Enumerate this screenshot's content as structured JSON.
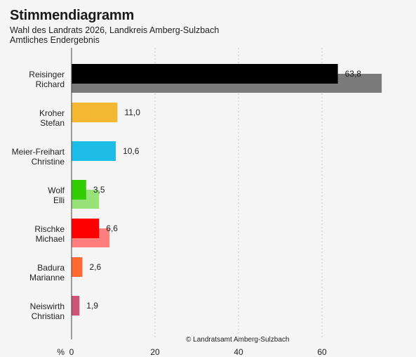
{
  "header": {
    "title": "Stimmendiagramm",
    "subtitle_line1": "Wahl des Landrats 2026, Landkreis Amberg-Sulzbach",
    "subtitle_line2": "Amtliches Endergebnis"
  },
  "source": "© Landratsamt Amberg-Sulzbach",
  "chart_data": {
    "type": "bar",
    "orientation": "horizontal",
    "title": "Stimmendiagramm",
    "subtitle": "Wahl des Landrats 2026, Landkreis Amberg-Sulzbach — Amtliches Endergebnis",
    "x_unit_label": "%",
    "xlim": [
      0,
      76
    ],
    "xticks": [
      0,
      20,
      40,
      60
    ],
    "grid": "vertical dotted",
    "categories": [
      [
        "Reisinger",
        "Richard"
      ],
      [
        "Kroher",
        "Stefan"
      ],
      [
        "Meier-Freihart",
        "Christine"
      ],
      [
        "Wolf",
        "Elli"
      ],
      [
        "Rischke",
        "Michael"
      ],
      [
        "Badura",
        "Marianne"
      ],
      [
        "Neiswirth",
        "Christian"
      ]
    ],
    "values": [
      63.8,
      11.0,
      10.6,
      3.5,
      6.6,
      2.6,
      1.9
    ],
    "value_labels": [
      "63,8",
      "11,0",
      "10,6",
      "3,5",
      "6,6",
      "2,6",
      "1,9"
    ],
    "comparison_values": [
      74.3,
      null,
      null,
      6.6,
      9.1,
      null,
      null
    ],
    "colors": [
      "#000000",
      "#f4b731",
      "#1ebde8",
      "#33cc00",
      "#ff0000",
      "#ff6a33",
      "#cc5577"
    ],
    "comparison_colors": [
      "#7a7a7a",
      null,
      null,
      "#99e27a",
      "#ff7f7f",
      null,
      null
    ]
  }
}
